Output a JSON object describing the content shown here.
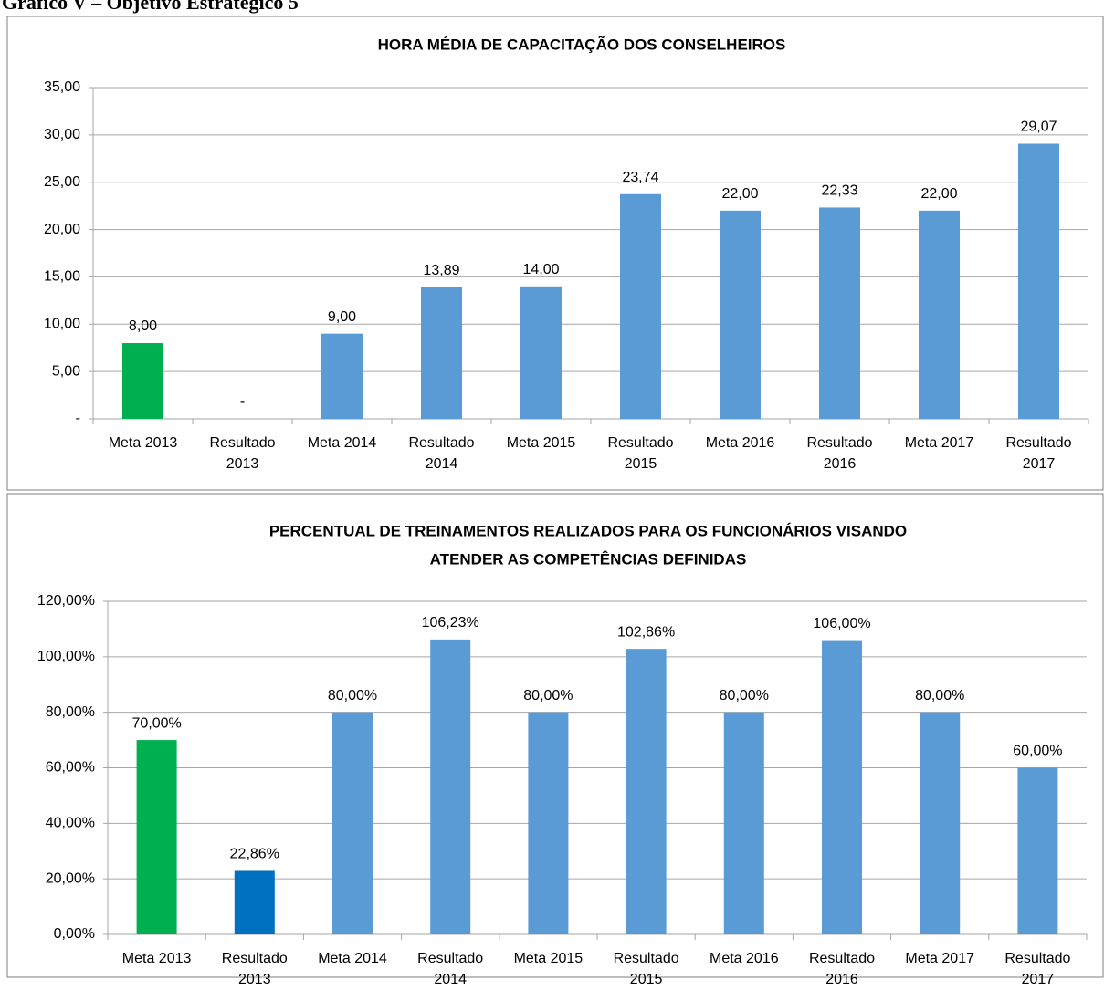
{
  "heading": "Gráfico V – Objetivo Estratégico 5",
  "chart_data": [
    {
      "type": "bar",
      "title": [
        "HORA MÉDIA DE CAPACITAÇÃO DOS CONSELHEIROS"
      ],
      "categories": [
        "Meta 2013",
        "Resultado 2013",
        "Meta 2014",
        "Resultado 2014",
        "Meta 2015",
        "Resultado 2015",
        "Meta 2016",
        "Resultado 2016",
        "Meta 2017",
        "Resultado 2017"
      ],
      "values": [
        8,
        0,
        9,
        13.89,
        14,
        23.74,
        22,
        22.33,
        22,
        29.07
      ],
      "value_labels": [
        "8,00",
        "-",
        "9,00",
        "13,89",
        "14,00",
        "23,74",
        "22,00",
        "22,33",
        "22,00",
        "29,07"
      ],
      "colors": [
        "#00b050",
        "#5b9bd5",
        "#5b9bd5",
        "#5b9bd5",
        "#5b9bd5",
        "#5b9bd5",
        "#5b9bd5",
        "#5b9bd5",
        "#5b9bd5",
        "#5b9bd5"
      ],
      "ylim": [
        0,
        35
      ],
      "yticks": [
        {
          "value": 0,
          "label": "-"
        },
        {
          "value": 5,
          "label": "5,00"
        },
        {
          "value": 10,
          "label": "10,00"
        },
        {
          "value": 15,
          "label": "15,00"
        },
        {
          "value": 20,
          "label": "20,00"
        },
        {
          "value": 25,
          "label": "25,00"
        },
        {
          "value": 30,
          "label": "30,00"
        },
        {
          "value": 35,
          "label": "35,00"
        }
      ],
      "grid": true
    },
    {
      "type": "bar",
      "title": [
        "PERCENTUAL DE TREINAMENTOS REALIZADOS PARA OS FUNCIONÁRIOS VISANDO",
        "ATENDER AS COMPETÊNCIAS DEFINIDAS"
      ],
      "categories": [
        "Meta 2013",
        "Resultado 2013",
        "Meta 2014",
        "Resultado 2014",
        "Meta 2015",
        "Resultado 2015",
        "Meta 2016",
        "Resultado 2016",
        "Meta 2017",
        "Resultado 2017"
      ],
      "values": [
        70,
        22.86,
        80,
        106.23,
        80,
        102.86,
        80,
        106,
        80,
        60
      ],
      "value_labels": [
        "70,00%",
        "22,86%",
        "80,00%",
        "106,23%",
        "80,00%",
        "102,86%",
        "80,00%",
        "106,00%",
        "80,00%",
        "60,00%"
      ],
      "colors": [
        "#00b050",
        "#0070c0",
        "#5b9bd5",
        "#5b9bd5",
        "#5b9bd5",
        "#5b9bd5",
        "#5b9bd5",
        "#5b9bd5",
        "#5b9bd5",
        "#5b9bd5"
      ],
      "ylim": [
        0,
        120
      ],
      "yticks": [
        {
          "value": 0,
          "label": "0,00%"
        },
        {
          "value": 20,
          "label": "20,00%"
        },
        {
          "value": 40,
          "label": "40,00%"
        },
        {
          "value": 60,
          "label": "60,00%"
        },
        {
          "value": 80,
          "label": "80,00%"
        },
        {
          "value": 100,
          "label": "100,00%"
        },
        {
          "value": 120,
          "label": "120,00%"
        }
      ],
      "grid": true
    }
  ]
}
